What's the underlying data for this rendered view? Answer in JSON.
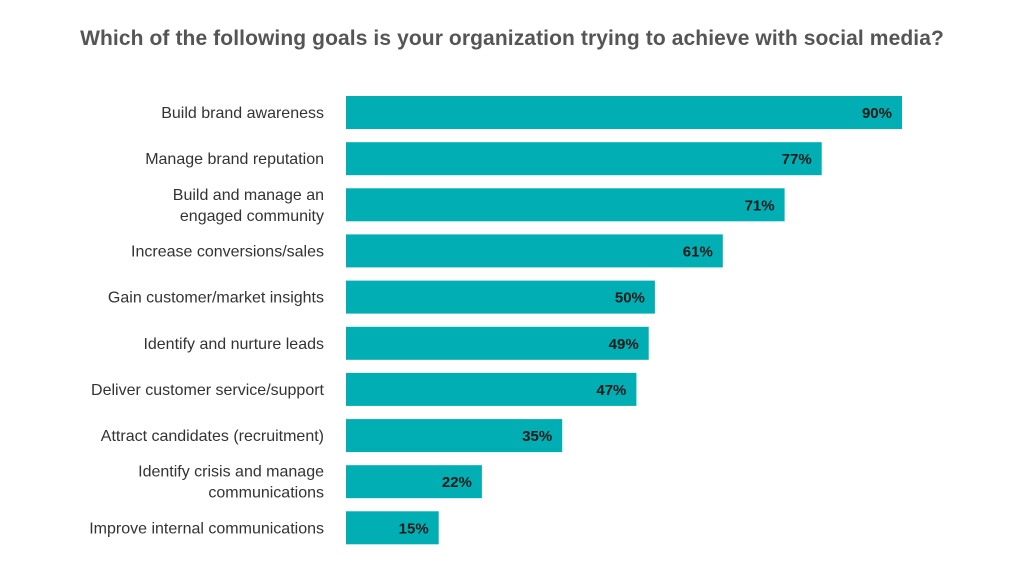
{
  "chart_data": {
    "type": "bar",
    "orientation": "horizontal",
    "title": "Which of the following goals is your organization trying to achieve with social media?",
    "categories": [
      "Build brand awareness",
      "Manage brand reputation",
      "Build and manage an engaged community",
      "Increase conversions/sales",
      "Gain customer/market insights",
      "Identify and nurture leads",
      "Deliver customer service/support",
      "Attract candidates (recruitment)",
      "Identify crisis and manage communications",
      "Improve internal communications"
    ],
    "category_lines": [
      [
        "Build brand awareness"
      ],
      [
        "Manage brand reputation"
      ],
      [
        "Build and manage an",
        "engaged community"
      ],
      [
        "Increase conversions/sales"
      ],
      [
        "Gain customer/market insights"
      ],
      [
        "Identify and nurture leads"
      ],
      [
        "Deliver customer service/support"
      ],
      [
        "Attract candidates (recruitment)"
      ],
      [
        "Identify crisis and manage",
        "communications"
      ],
      [
        "Improve internal communications"
      ]
    ],
    "values": [
      90,
      77,
      71,
      61,
      50,
      49,
      47,
      35,
      22,
      15
    ],
    "value_labels": [
      "90%",
      "77%",
      "71%",
      "61%",
      "50%",
      "49%",
      "47%",
      "35%",
      "22%",
      "15%"
    ],
    "unit": "%",
    "xlim": [
      0,
      100
    ],
    "bar_color": "#00AEB3",
    "grid": false,
    "legend": "none"
  }
}
